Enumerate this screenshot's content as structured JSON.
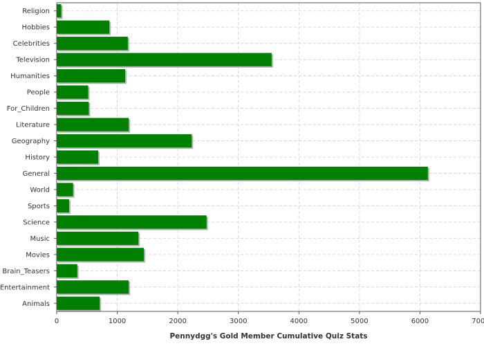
{
  "chart_data": {
    "type": "bar",
    "orientation": "horizontal",
    "categories": [
      "Religion",
      "Hobbies",
      "Celebrities",
      "Television",
      "Humanities",
      "People",
      "For_Children",
      "Literature",
      "Geography",
      "History",
      "General",
      "World",
      "Sports",
      "Science",
      "Music",
      "Movies",
      "Brain_Teasers",
      "Entertainment",
      "Animals"
    ],
    "values": [
      75,
      870,
      1175,
      3550,
      1130,
      520,
      530,
      1190,
      2230,
      685,
      6130,
      270,
      205,
      2475,
      1350,
      1440,
      340,
      1190,
      710
    ],
    "xlabel": "Pennydgg's Gold Member Cumulative Quiz Stats",
    "ylabel": "",
    "xlim": [
      0,
      7000
    ],
    "xticks": [
      0,
      1000,
      2000,
      3000,
      4000,
      5000,
      6000,
      7000
    ],
    "grid": true,
    "legend": "none",
    "colors": {
      "bar": "#008000",
      "bar_shadow": "#b4b4b4",
      "grid": "#d8d8d8",
      "axis": "#555555"
    }
  }
}
